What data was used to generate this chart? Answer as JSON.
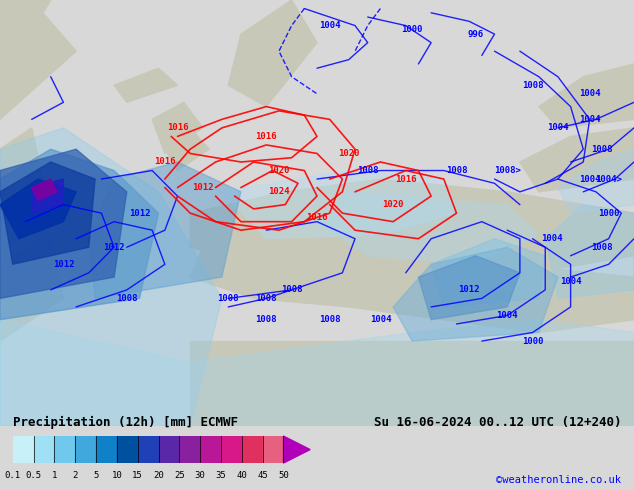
{
  "title_left": "Precipitation (12h) [mm] ECMWF",
  "title_right": "Su 16-06-2024 00..12 UTC (12+240)",
  "subtitle_right": "©weatheronline.co.uk",
  "colorbar_levels": [
    0.1,
    0.5,
    1,
    2,
    5,
    10,
    15,
    20,
    25,
    30,
    35,
    40,
    45,
    50
  ],
  "colorbar_colors": [
    "#c8f0f8",
    "#a0e0f4",
    "#70c8ec",
    "#40a8dc",
    "#1080c8",
    "#0050a0",
    "#2040b8",
    "#5828a8",
    "#8820a0",
    "#b81898",
    "#d81888",
    "#e03060",
    "#e86080",
    "#b000b8"
  ],
  "bg_color": "#d8d8d8",
  "map_bg": "#c8e8f8",
  "ocean_color": "#b8dff0",
  "land_color": "#c8c8b8",
  "label_fontsize": 8,
  "title_fontsize": 9
}
